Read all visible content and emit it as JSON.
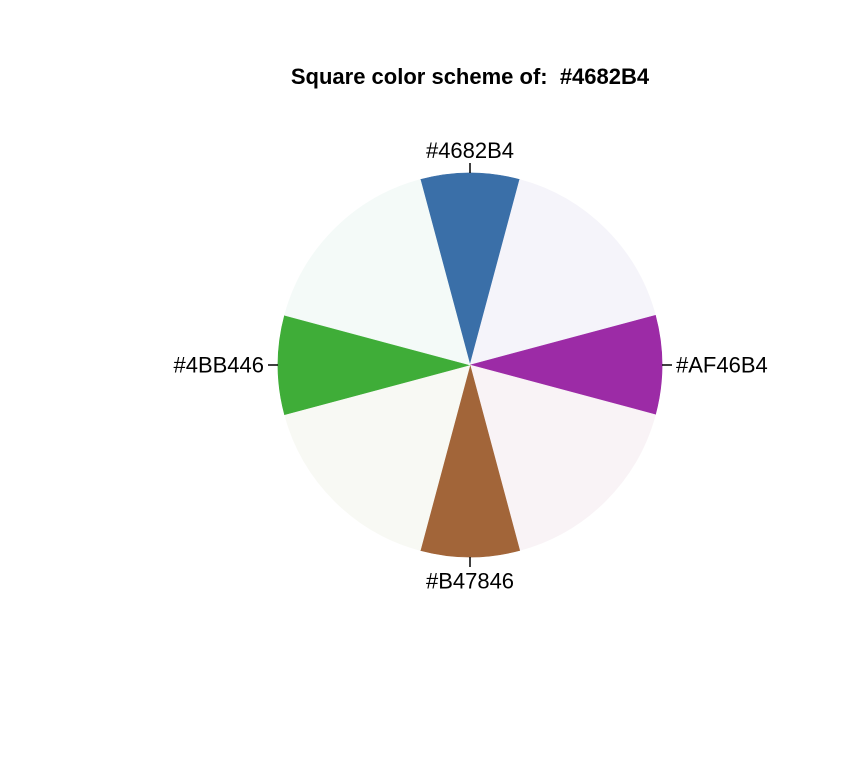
{
  "chart_data": {
    "type": "pie",
    "title": "Square color scheme of:  #4682B4",
    "labeled_slices": [
      {
        "label": "#4682B4",
        "color": "#4682B4"
      },
      {
        "label": "#AF46B4",
        "color": "#AF46B4"
      },
      {
        "label": "#B47846",
        "color": "#B47846"
      },
      {
        "label": "#4BB446",
        "color": "#4BB446"
      }
    ],
    "slices": [
      {
        "label": "#4682B4",
        "color": "#3A6FA8",
        "value": 1
      },
      {
        "label": "",
        "color": "#F5F4FA",
        "value": 2
      },
      {
        "label": "#AF46B4",
        "color": "#9C2BA6",
        "value": 1
      },
      {
        "label": "",
        "color": "#F9F3F6",
        "value": 2
      },
      {
        "label": "#B47846",
        "color": "#A26539",
        "value": 1
      },
      {
        "label": "",
        "color": "#F8F9F4",
        "value": 2
      },
      {
        "label": "#4BB446",
        "color": "#3FAD38",
        "value": 1
      },
      {
        "label": "",
        "color": "#F4FAF8",
        "value": 2
      }
    ],
    "start_angle_deg": 0,
    "direction": "clockwise",
    "legend": "none",
    "grid": false
  }
}
